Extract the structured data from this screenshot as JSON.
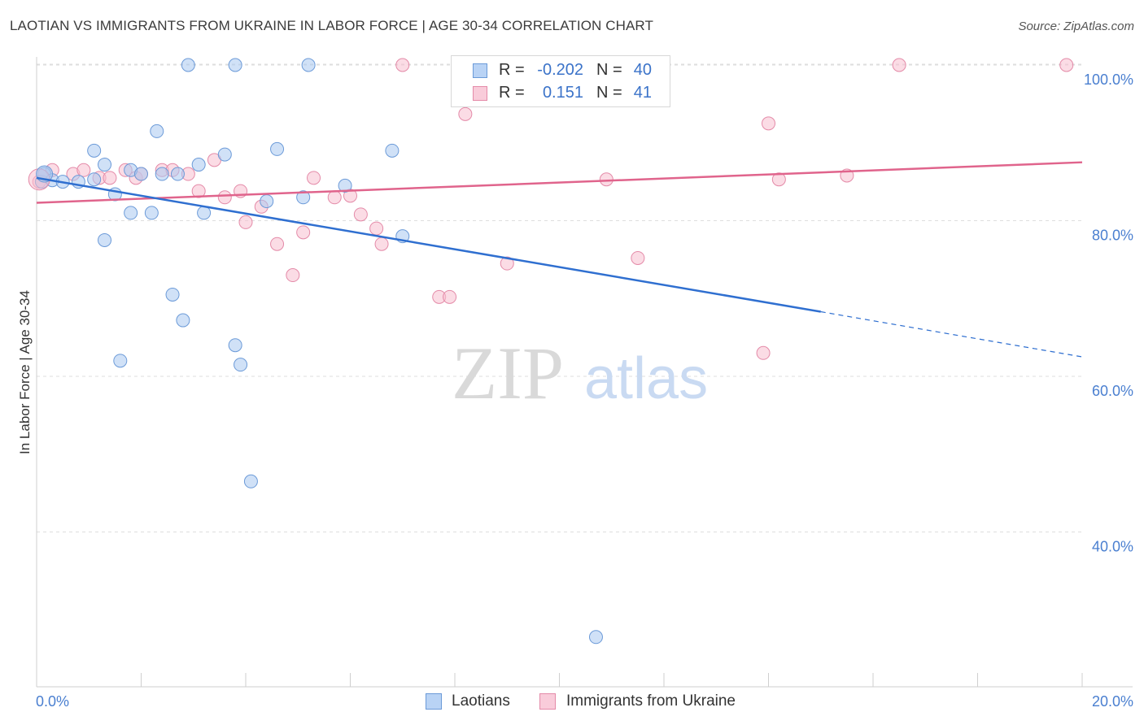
{
  "title": "LAOTIAN VS IMMIGRANTS FROM UKRAINE IN LABOR FORCE | AGE 30-34 CORRELATION CHART",
  "source": "Source: ZipAtlas.com",
  "watermark": {
    "zip": "ZIP",
    "atlas": "atlas"
  },
  "colors": {
    "blue_fill": "#a9c8f0",
    "blue_stroke": "#6b9ad8",
    "blue_line": "#2f6fd0",
    "pink_fill": "#f7bfd0",
    "pink_stroke": "#e48aa8",
    "pink_line": "#e0648c",
    "axis_label": "#4a7fd0",
    "grid": "#dedede"
  },
  "legend": {
    "rows": [
      {
        "r_label": "R =",
        "r_value": "-0.202",
        "n_label": "N =",
        "n_value": "40"
      },
      {
        "r_label": "R =",
        "r_value": "0.151",
        "n_label": "N =",
        "n_value": "41"
      }
    ]
  },
  "bottom_legend": {
    "series1": "Laotians",
    "series2": "Immigrants from Ukraine"
  },
  "chart_data": {
    "type": "scatter",
    "ylabel": "In Labor Force | Age 30-34",
    "xlim": [
      0,
      20
    ],
    "ylim": [
      18,
      102
    ],
    "x_tick_labels": [
      "0.0%",
      "20.0%"
    ],
    "y_ticks": [
      40,
      60,
      80,
      100
    ],
    "y_tick_labels": [
      "40.0%",
      "60.0%",
      "80.0%",
      "100.0%"
    ],
    "grid": true,
    "series": [
      {
        "name": "Laotians",
        "points": [
          [
            0.1,
            85.0
          ],
          [
            0.15,
            86.0
          ],
          [
            0.3,
            85.2
          ],
          [
            0.5,
            85.0
          ],
          [
            0.8,
            85.0
          ],
          [
            1.1,
            85.3
          ],
          [
            1.1,
            89.0
          ],
          [
            1.3,
            87.2
          ],
          [
            1.5,
            83.4
          ],
          [
            1.3,
            77.5
          ],
          [
            1.6,
            62.0
          ],
          [
            1.8,
            81.0
          ],
          [
            1.8,
            86.5
          ],
          [
            2.0,
            86.0
          ],
          [
            2.2,
            81.0
          ],
          [
            2.3,
            91.5
          ],
          [
            2.4,
            86.0
          ],
          [
            2.6,
            70.5
          ],
          [
            2.7,
            86.0
          ],
          [
            2.8,
            67.2
          ],
          [
            2.9,
            100.0
          ],
          [
            3.1,
            87.2
          ],
          [
            3.2,
            81.0
          ],
          [
            3.6,
            88.5
          ],
          [
            3.8,
            100.0
          ],
          [
            3.8,
            64.0
          ],
          [
            3.9,
            61.5
          ],
          [
            4.1,
            46.5
          ],
          [
            4.4,
            82.5
          ],
          [
            4.6,
            89.2
          ],
          [
            5.1,
            83.0
          ],
          [
            5.2,
            100.0
          ],
          [
            5.9,
            84.5
          ],
          [
            6.8,
            89.0
          ],
          [
            7.0,
            78.0
          ],
          [
            8.2,
            100.0
          ],
          [
            8.6,
            97.0
          ],
          [
            10.7,
            26.5
          ]
        ]
      },
      {
        "name": "Immigrants from Ukraine",
        "points": [
          [
            0.05,
            85.0
          ],
          [
            0.3,
            86.5
          ],
          [
            0.7,
            86.0
          ],
          [
            0.9,
            86.5
          ],
          [
            1.2,
            85.5
          ],
          [
            1.4,
            85.5
          ],
          [
            1.7,
            86.5
          ],
          [
            1.9,
            85.5
          ],
          [
            2.0,
            86.0
          ],
          [
            2.4,
            86.5
          ],
          [
            2.6,
            86.5
          ],
          [
            2.9,
            86.0
          ],
          [
            3.1,
            83.8
          ],
          [
            3.4,
            87.8
          ],
          [
            3.6,
            83.0
          ],
          [
            3.9,
            83.8
          ],
          [
            4.0,
            79.8
          ],
          [
            4.3,
            81.8
          ],
          [
            4.6,
            77.0
          ],
          [
            4.9,
            73.0
          ],
          [
            5.1,
            78.5
          ],
          [
            5.3,
            85.5
          ],
          [
            5.7,
            83.0
          ],
          [
            6.0,
            83.2
          ],
          [
            6.2,
            80.8
          ],
          [
            6.5,
            79.0
          ],
          [
            6.6,
            77.0
          ],
          [
            7.0,
            100.0
          ],
          [
            7.7,
            70.2
          ],
          [
            7.9,
            70.2
          ],
          [
            8.2,
            93.7
          ],
          [
            9.0,
            74.5
          ],
          [
            10.9,
            85.3
          ],
          [
            11.5,
            75.2
          ],
          [
            13.9,
            63.0
          ],
          [
            14.2,
            85.3
          ],
          [
            14.0,
            92.5
          ],
          [
            15.5,
            85.8
          ],
          [
            16.5,
            100.0
          ],
          [
            19.7,
            100.0
          ]
        ]
      }
    ],
    "trendlines": [
      {
        "name": "Laotians",
        "x": [
          0,
          15
        ],
        "y": [
          85.5,
          68.3
        ],
        "dashed_to": [
          20,
          62.5
        ]
      },
      {
        "name": "Immigrants from Ukraine",
        "x": [
          0,
          20
        ],
        "y": [
          82.3,
          87.5
        ]
      }
    ]
  }
}
